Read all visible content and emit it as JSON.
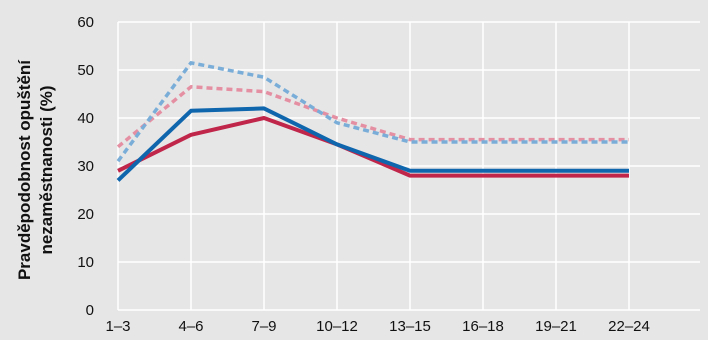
{
  "chart_data": {
    "type": "line",
    "title": "",
    "xlabel": "",
    "ylabel_lines": [
      "Pravděpodobnost opuštění",
      "nezaměstnanosti (%)"
    ],
    "categories": [
      "1–3",
      "4–6",
      "7–9",
      "10–12",
      "13–15",
      "16–18",
      "19–21",
      "22–24"
    ],
    "ylim": [
      0,
      60
    ],
    "yticks": [
      0,
      10,
      20,
      30,
      40,
      50,
      60
    ],
    "grid": true,
    "legend": "none",
    "series": [
      {
        "color": "#c0254a",
        "style": "solid",
        "values": [
          29,
          36.5,
          40,
          34.5,
          28,
          28,
          28,
          28
        ]
      },
      {
        "color": "#0f66ad",
        "style": "solid",
        "values": [
          27,
          41.5,
          42,
          34.5,
          29,
          29,
          29,
          29
        ]
      },
      {
        "color": "#e58fa3",
        "style": "dashed",
        "values": [
          34,
          46.5,
          45.5,
          40,
          35.5,
          35.5,
          35.5,
          35.5
        ]
      },
      {
        "color": "#7aaed8",
        "style": "dashed",
        "values": [
          31,
          51.5,
          48.5,
          39,
          35,
          35,
          35,
          35
        ]
      }
    ]
  }
}
